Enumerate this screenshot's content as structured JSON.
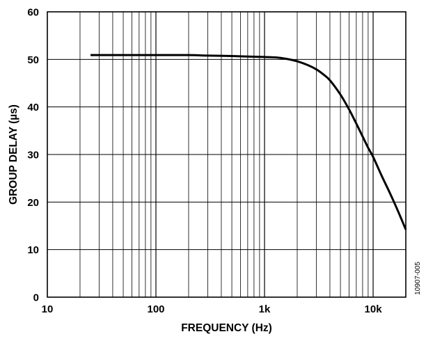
{
  "chart_data": {
    "type": "line",
    "title": "",
    "xlabel": "FREQUENCY (Hz)",
    "ylabel": "GROUP DELAY (µs)",
    "xscale": "log",
    "xlim": [
      10,
      20000
    ],
    "ylim": [
      0,
      60
    ],
    "xticks": [
      10,
      100,
      1000,
      10000
    ],
    "xtick_labels": [
      "10",
      "100",
      "1k",
      "10k"
    ],
    "yticks": [
      0,
      10,
      20,
      30,
      40,
      50,
      60
    ],
    "ytick_labels": [
      "0",
      "10",
      "20",
      "30",
      "40",
      "50",
      "60"
    ],
    "grid": true,
    "legend": "none",
    "line_color": "#000000",
    "figure_id": "10907-005",
    "series": [
      {
        "x": [
          25,
          50,
          100,
          200,
          300,
          500,
          700,
          1000,
          1300,
          1600,
          2000,
          2500,
          3000,
          3500,
          4000,
          5000,
          6000,
          7000,
          8000,
          9000,
          10000,
          12000,
          14000,
          16000,
          18000,
          20000
        ],
        "y": [
          50.9,
          50.9,
          50.9,
          50.9,
          50.8,
          50.7,
          50.6,
          50.5,
          50.4,
          50.1,
          49.6,
          48.8,
          47.9,
          46.8,
          45.6,
          42.6,
          39.5,
          36.5,
          33.8,
          31.4,
          29.5,
          25.5,
          22.3,
          19.4,
          16.7,
          14.2
        ]
      }
    ]
  }
}
